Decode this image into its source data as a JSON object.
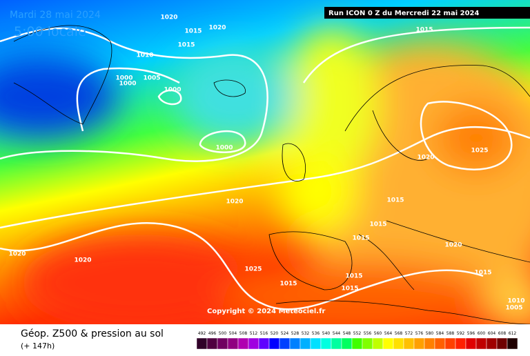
{
  "header": {
    "date": "Mardi 28 mai 2024",
    "time": "5:00 locale",
    "run": "Run ICON 0 Z du Mercredi 22 mai 2024"
  },
  "copyright": "Copyright © 2024 Meteociel.fr",
  "footer": {
    "title": "Géop. Z500 & pression au sol",
    "lead": "(+ 147h)"
  },
  "isobar_labels": [
    "1020",
    "1020",
    "1015",
    "1015",
    "1010",
    "1000",
    "1000",
    "1005",
    "1000",
    "1000",
    "1015",
    "1025",
    "1020",
    "1020",
    "1015",
    "1015",
    "1015",
    "1020",
    "1015",
    "1020",
    "1020",
    "1025",
    "1015",
    "1015",
    "1015",
    "1010",
    "1005"
  ],
  "legend": [
    {
      "label": 492,
      "color": "#300028"
    },
    {
      "label": 496,
      "color": "#500040"
    },
    {
      "label": 500,
      "color": "#700060"
    },
    {
      "label": 504,
      "color": "#900080"
    },
    {
      "label": 508,
      "color": "#b000b0"
    },
    {
      "label": 512,
      "color": "#a000e0"
    },
    {
      "label": 516,
      "color": "#6000ff"
    },
    {
      "label": 520,
      "color": "#0000ff"
    },
    {
      "label": 524,
      "color": "#0040ff"
    },
    {
      "label": 528,
      "color": "#0080ff"
    },
    {
      "label": 532,
      "color": "#00b0ff"
    },
    {
      "label": 536,
      "color": "#00e0ff"
    },
    {
      "label": 540,
      "color": "#00ffe0"
    },
    {
      "label": 544,
      "color": "#00ffa0"
    },
    {
      "label": 548,
      "color": "#00ff60"
    },
    {
      "label": 552,
      "color": "#40ff00"
    },
    {
      "label": 556,
      "color": "#80ff00"
    },
    {
      "label": 560,
      "color": "#c0ff00"
    },
    {
      "label": 564,
      "color": "#ffff00"
    },
    {
      "label": 568,
      "color": "#ffe000"
    },
    {
      "label": 572,
      "color": "#ffc000"
    },
    {
      "label": 576,
      "color": "#ffa000"
    },
    {
      "label": 580,
      "color": "#ff8000"
    },
    {
      "label": 584,
      "color": "#ff6000"
    },
    {
      "label": 588,
      "color": "#ff4000"
    },
    {
      "label": 592,
      "color": "#ff2000"
    },
    {
      "label": 596,
      "color": "#e00000"
    },
    {
      "label": 600,
      "color": "#c00000"
    },
    {
      "label": 604,
      "color": "#a00000"
    },
    {
      "label": 608,
      "color": "#700000"
    },
    {
      "label": 612,
      "color": "#200000"
    }
  ]
}
